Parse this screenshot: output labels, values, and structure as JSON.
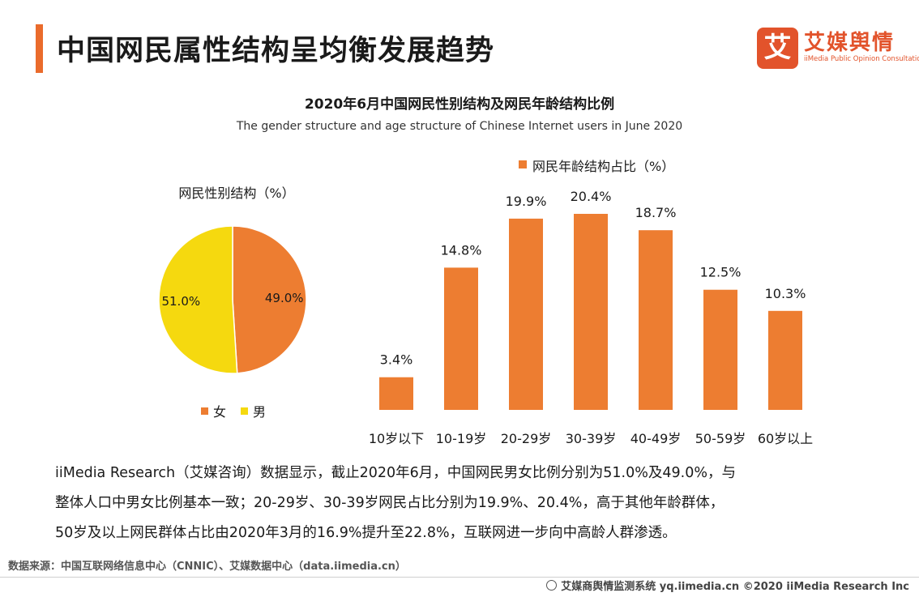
{
  "header": {
    "title": "中国网民属性结构呈均衡发展趋势",
    "logo_mark": "艾",
    "logo_cn": "艾媒舆情",
    "logo_en": "iiMedia Public Opinion Consultation"
  },
  "chart_title": "2020年6月中国网民性别结构及网民年龄结构比例",
  "chart_subtitle": "The gender structure and age structure of Chinese Internet users in June 2020",
  "colors": {
    "accent": "#ea6b2c",
    "female": "#ed7d31",
    "male": "#f5d90f",
    "bar": "#ed7d31"
  },
  "chart_data": [
    {
      "type": "pie",
      "title": "网民性别结构（%）",
      "labels": [
        "女",
        "男"
      ],
      "values": [
        49.0,
        51.0
      ],
      "value_labels": [
        "49.0%",
        "51.0%"
      ],
      "legend": [
        "女",
        "男"
      ],
      "legend_position": "bottom"
    },
    {
      "type": "bar",
      "legend": "网民年龄结构占比（%）",
      "legend_position": "top",
      "categories": [
        "10岁以下",
        "10-19岁",
        "20-29岁",
        "30-39岁",
        "40-49岁",
        "50-59岁",
        "60岁以上"
      ],
      "values": [
        3.4,
        14.8,
        19.9,
        20.4,
        18.7,
        12.5,
        10.3
      ],
      "value_labels": [
        "3.4%",
        "14.8%",
        "19.9%",
        "20.4%",
        "18.7%",
        "12.5%",
        "10.3%"
      ],
      "ylim": [
        0,
        24
      ]
    }
  ],
  "description": {
    "line1": "iiMedia Research（艾媒咨询）数据显示，截止2020年6月，中国网民男女比例分别为51.0%及49.0%，与",
    "line2": "整体人口中男女比例基本一致；20-29岁、30-39岁网民占比分别为19.9%、20.4%，高于其他年龄群体，",
    "line3": "50岁及以上网民群体占比由2020年3月的16.9%提升至22.8%，互联网进一步向中高龄人群渗透。"
  },
  "source": "数据来源：中国互联网络信息中心（CNNIC）、艾媒数据中心（data.iimedia.cn）",
  "footer": "艾媒商舆情监测系统 yq.iimedia.cn ©2020 iiMedia Research Inc"
}
